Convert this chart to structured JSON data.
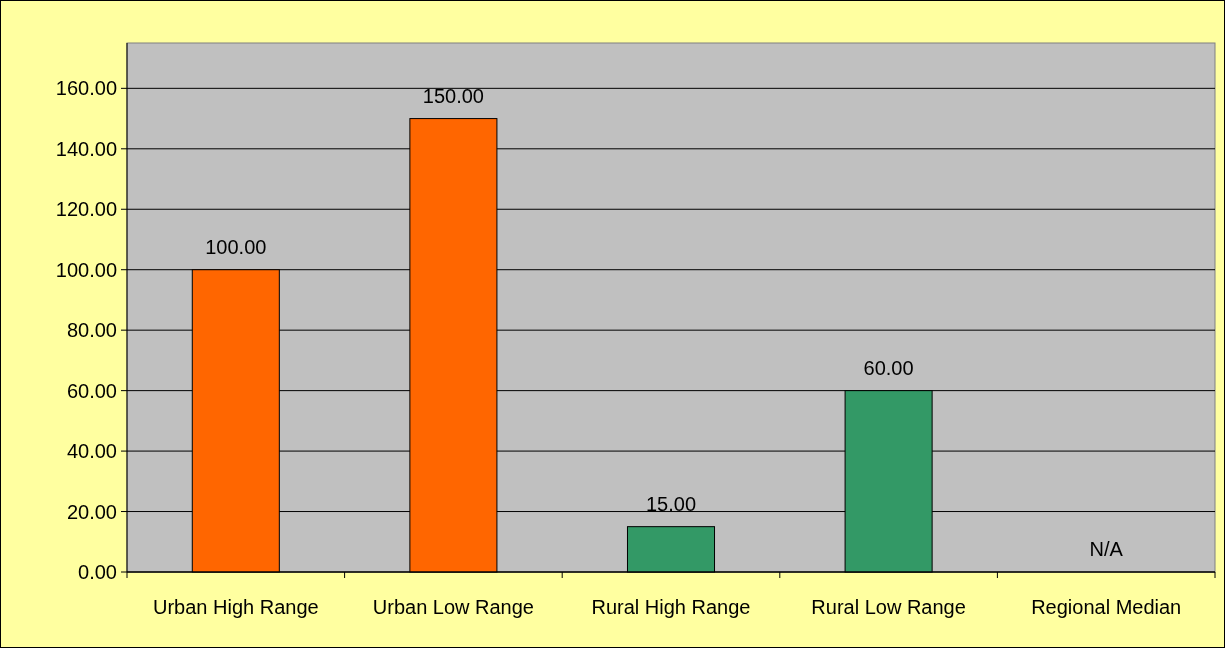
{
  "chart_data": {
    "type": "bar",
    "categories": [
      "Urban High Range",
      "Urban Low Range",
      "Rural High Range",
      "Rural Low Range",
      "Regional Median"
    ],
    "values": [
      100,
      150,
      15,
      60,
      null
    ],
    "colors": [
      "#ff6600",
      "#ff6600",
      "#339966",
      "#339966",
      null
    ],
    "value_labels": [
      "100.00",
      "150.00",
      "15.00",
      "60.00",
      "N/A"
    ],
    "ylim": [
      0,
      175
    ],
    "yticks": [
      {
        "value": 0,
        "label": "0.00"
      },
      {
        "value": 20,
        "label": "20.00"
      },
      {
        "value": 40,
        "label": "40.00"
      },
      {
        "value": 60,
        "label": "60.00"
      },
      {
        "value": 80,
        "label": "80.00"
      },
      {
        "value": 100,
        "label": "100.00"
      },
      {
        "value": 120,
        "label": "120.00"
      },
      {
        "value": 140,
        "label": "140.00"
      },
      {
        "value": 160,
        "label": "160.00"
      }
    ],
    "grid": "y"
  }
}
